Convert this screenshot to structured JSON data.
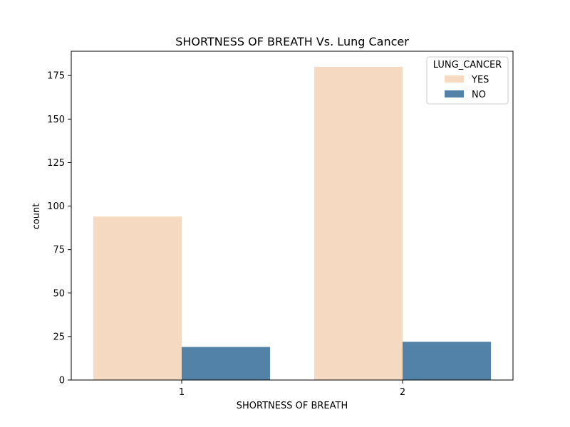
{
  "chart_data": {
    "type": "bar",
    "title": "SHORTNESS OF BREATH Vs. Lung Cancer",
    "xlabel": "SHORTNESS OF BREATH",
    "ylabel": "count",
    "categories": [
      "1",
      "2"
    ],
    "series": [
      {
        "name": "YES",
        "color": "#f5dac1",
        "values": [
          94,
          180
        ]
      },
      {
        "name": "NO",
        "color": "#5282a8",
        "values": [
          19,
          22
        ]
      }
    ],
    "ylim": [
      0,
      189
    ],
    "yticks": [
      0,
      25,
      50,
      75,
      100,
      125,
      150,
      175
    ],
    "legend": {
      "title": "LUNG_CANCER",
      "placement": "top-right"
    },
    "grid": false
  }
}
